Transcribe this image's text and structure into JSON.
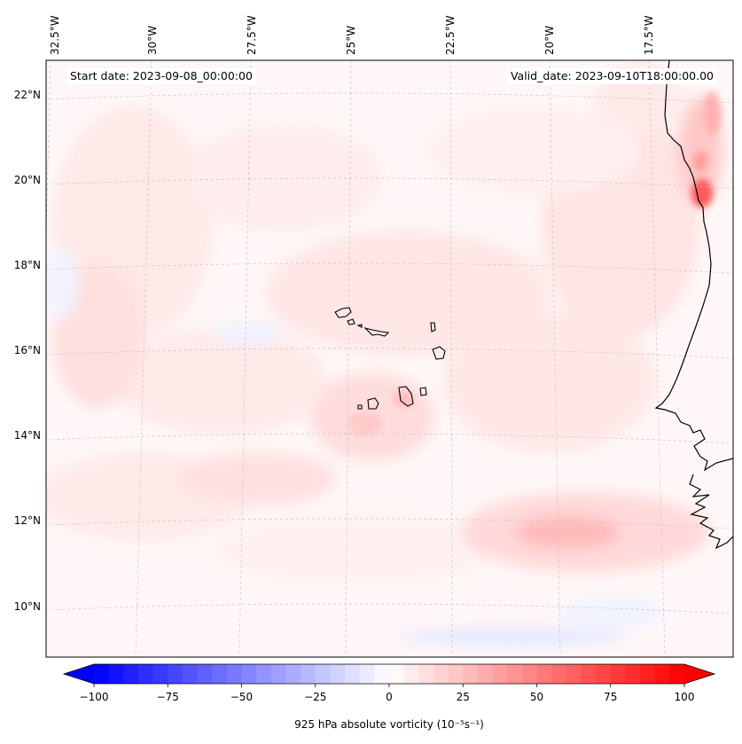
{
  "map": {
    "start_date": "Start date: 2023-09-08_00:00:00",
    "valid_date": "Valid_date: 2023-09-10T18:00:00.00",
    "lon_labels": [
      "32.5°W",
      "30°W",
      "27.5°W",
      "25°W",
      "22.5°W",
      "20°W",
      "17.5°W"
    ],
    "lat_labels": [
      "22°N",
      "20°N",
      "18°N",
      "16°N",
      "14°N",
      "12°N",
      "10°N"
    ],
    "colors": {
      "background_tint": "#fff7f7",
      "positive_light": "#ffe4e4",
      "positive_mid": "#ffc8c8",
      "positive_strong": "#ff6a6a",
      "negative_light": "#eef1ff",
      "coastline": "#000000",
      "gridline": "#bdbdbd"
    }
  },
  "colorbar": {
    "label": "925 hPa absolute vorticity (10⁻⁵s⁻¹)",
    "ticks": [
      "−100",
      "−75",
      "−50",
      "−25",
      "0",
      "25",
      "50",
      "75",
      "100"
    ],
    "min": -100,
    "max": 100,
    "step": 5,
    "low_color": "#0000ff",
    "mid_color": "#ffffff",
    "high_color": "#ff0000"
  }
}
